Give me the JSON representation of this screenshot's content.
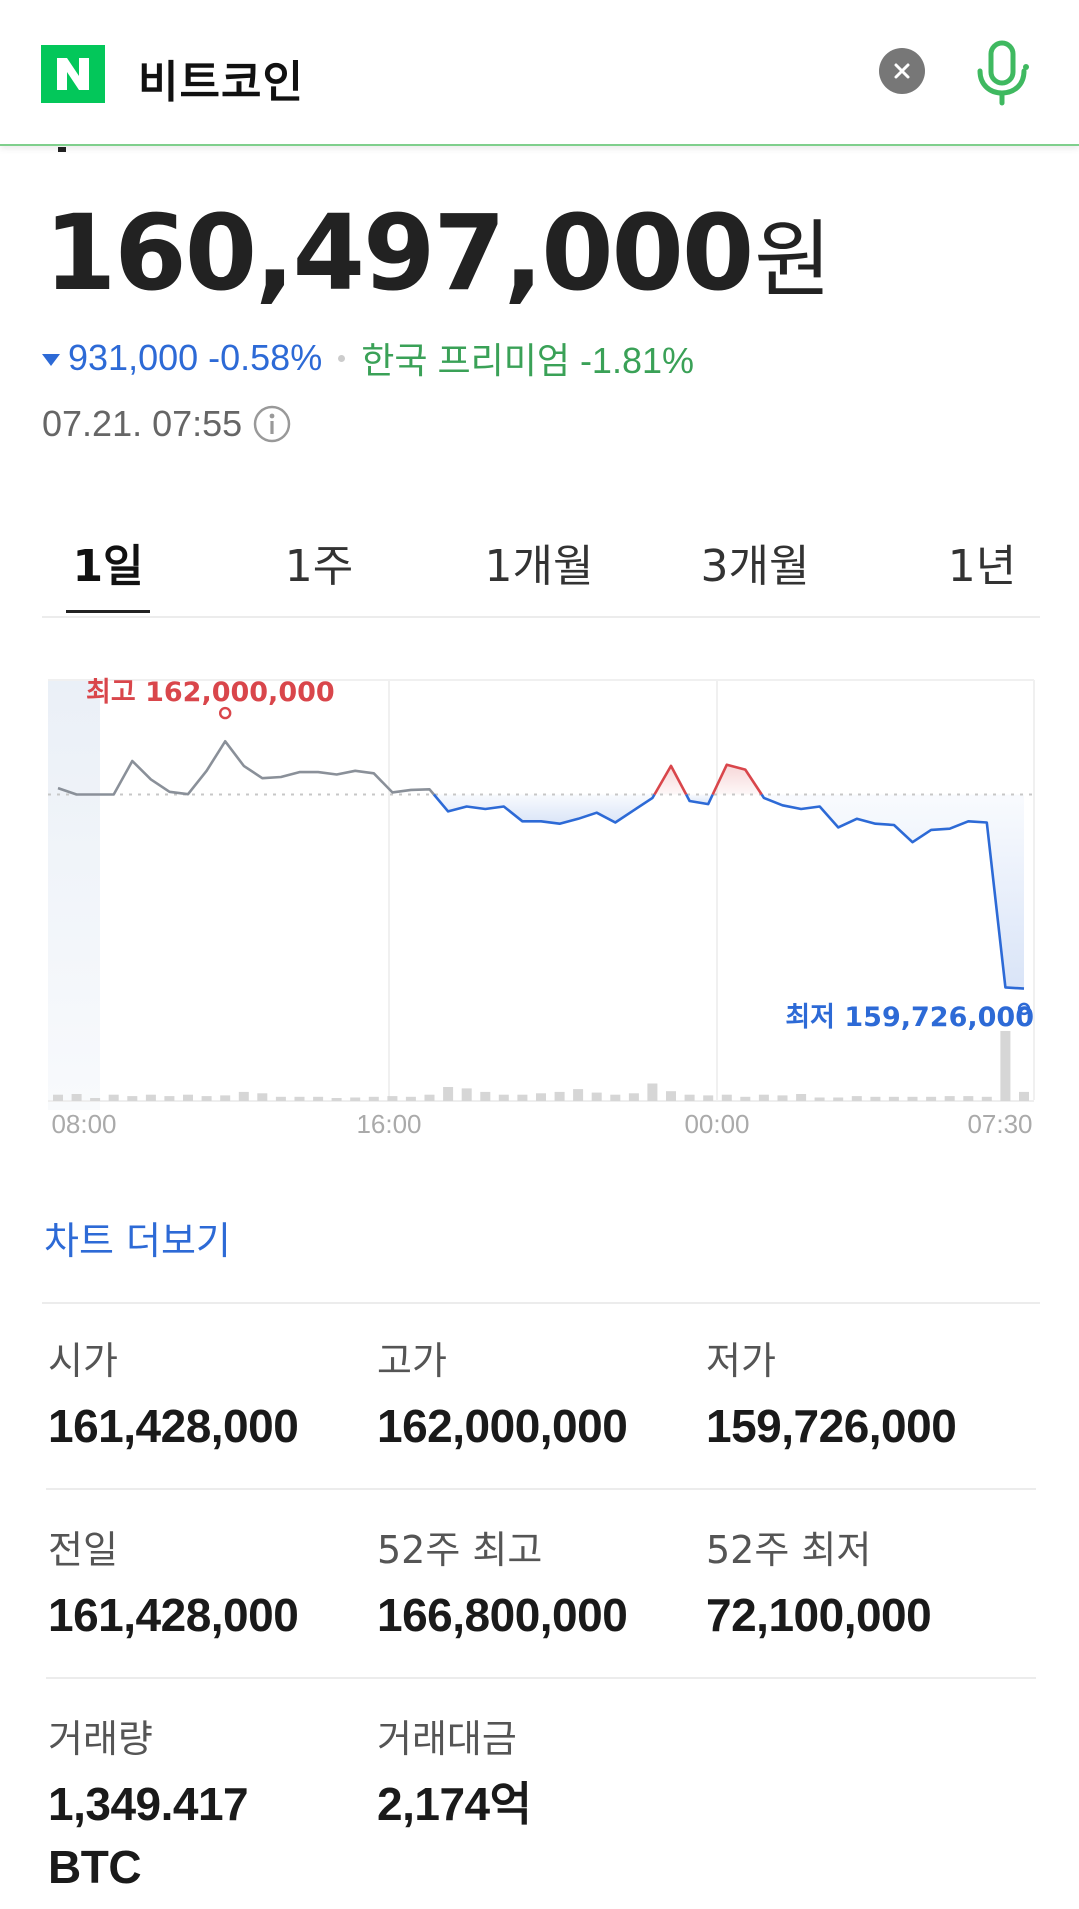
{
  "search": {
    "query": "비트코인",
    "logo_letter": "N"
  },
  "price": {
    "value": "160,497,000",
    "unit": "원"
  },
  "change": {
    "amount": "931,000",
    "percent": "-0.58%",
    "direction": "down",
    "premium": "한국 프리미엄 -1.81%"
  },
  "timestamp": "07.21. 07:55",
  "tabs": [
    {
      "label": "1일",
      "active": true
    },
    {
      "label": "1주",
      "active": false
    },
    {
      "label": "1개월",
      "active": false
    },
    {
      "label": "3개월",
      "active": false
    },
    {
      "label": "1년",
      "active": false
    }
  ],
  "chart_data": {
    "type": "line",
    "high_label": "최고 162,000,000",
    "low_label": "최저 159,726,000",
    "x_ticks": [
      "08:00",
      "16:00",
      "00:00",
      "07:30"
    ],
    "baseline": 161428000,
    "high": 162000000,
    "low": 159726000,
    "colors": {
      "up": "#d9464b",
      "down": "#2d6ad6",
      "neutral": "#8a9099"
    },
    "points": [
      161480000,
      161428000,
      161428000,
      161428000,
      161700000,
      161550000,
      161450000,
      161430000,
      161620000,
      161860000,
      161660000,
      161560000,
      161570000,
      161610000,
      161610000,
      161590000,
      161620000,
      161600000,
      161445000,
      161465000,
      161470000,
      161290000,
      161330000,
      161310000,
      161330000,
      161210000,
      161210000,
      161190000,
      161230000,
      161280000,
      161200000,
      161300000,
      161400000,
      161660000,
      161375000,
      161350000,
      161670000,
      161630000,
      161400000,
      161340000,
      161310000,
      161330000,
      161160000,
      161230000,
      161190000,
      161180000,
      161040000,
      161140000,
      161150000,
      161210000,
      161200000,
      159860000,
      159850000
    ],
    "volumes": [
      0.09,
      0.1,
      0.04,
      0.09,
      0.07,
      0.09,
      0.07,
      0.09,
      0.07,
      0.08,
      0.13,
      0.11,
      0.06,
      0.06,
      0.06,
      0.03,
      0.05,
      0.06,
      0.07,
      0.06,
      0.09,
      0.2,
      0.18,
      0.13,
      0.09,
      0.09,
      0.11,
      0.13,
      0.17,
      0.12,
      0.09,
      0.11,
      0.25,
      0.14,
      0.09,
      0.08,
      0.09,
      0.06,
      0.09,
      0.08,
      0.1,
      0.05,
      0.05,
      0.07,
      0.06,
      0.06,
      0.06,
      0.06,
      0.07,
      0.07,
      0.06,
      1.0,
      0.13
    ]
  },
  "more_chart": "차트 더보기",
  "stats": [
    {
      "label": "시가",
      "value": "161,428,000",
      "color": "#1a1a1a"
    },
    {
      "label": "고가",
      "value": "162,000,000",
      "color": "#d9464b"
    },
    {
      "label": "저가",
      "value": "159,726,000",
      "color": "#2d6ad6"
    },
    {
      "label": "전일",
      "value": "161,428,000",
      "color": "#1a1a1a"
    },
    {
      "label": "52주 최고",
      "value": "166,800,000",
      "color": "#1a1a1a"
    },
    {
      "label": "52주 최저",
      "value": "72,100,000",
      "color": "#1a1a1a"
    },
    {
      "label": "거래량",
      "value": "1,349.417 BTC",
      "color": "#1a1a1a"
    },
    {
      "label": "거래대금",
      "value": "2,174억",
      "color": "#1a1a1a"
    }
  ]
}
